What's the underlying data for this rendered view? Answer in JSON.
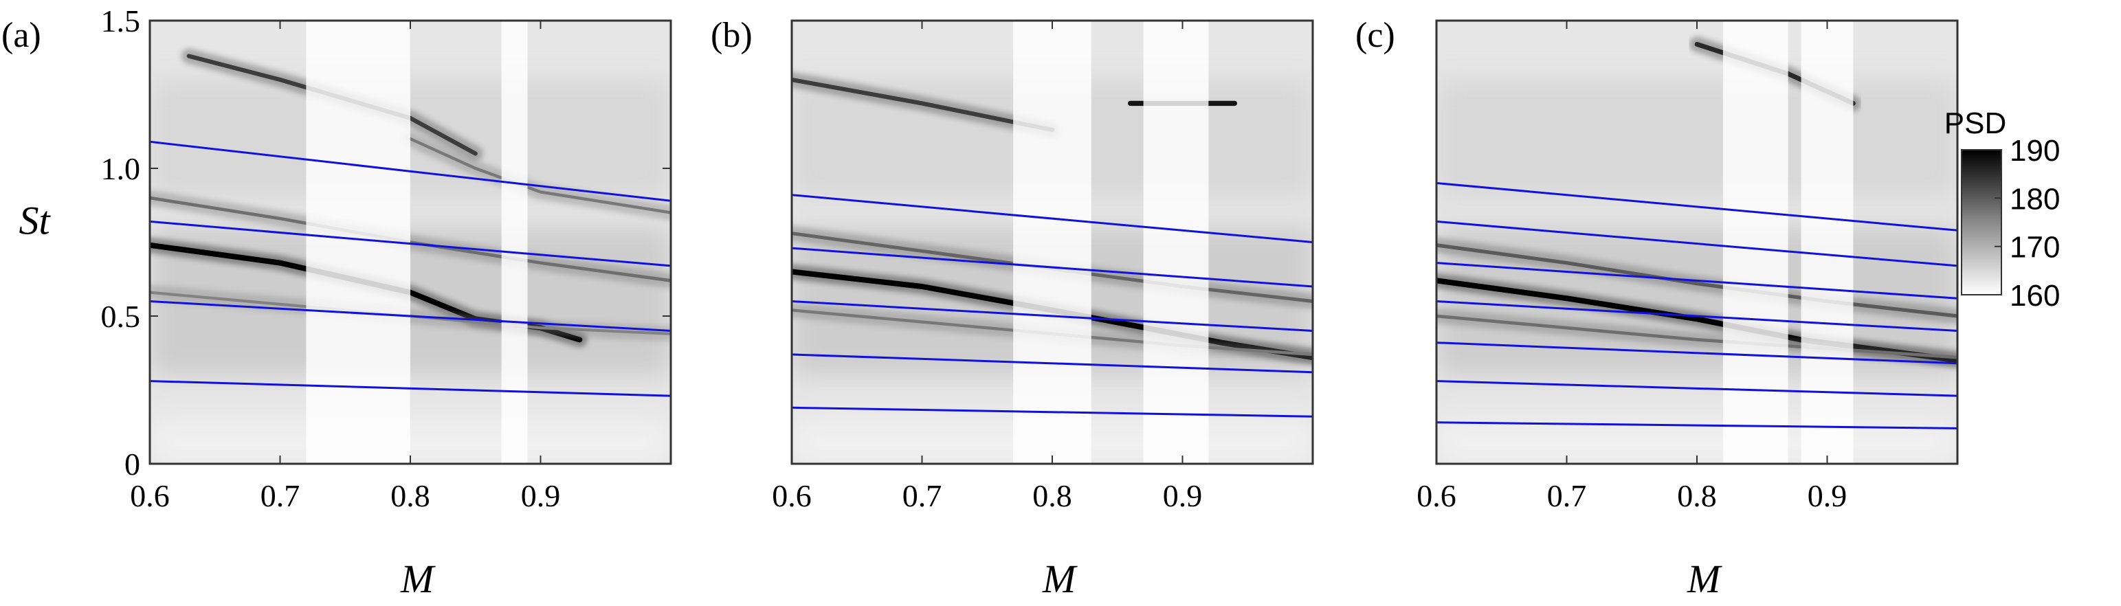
{
  "chart_data": [
    {
      "type": "heatmap",
      "panel_label": "(a)",
      "xlabel": "M",
      "ylabel": "St",
      "xlim": [
        0.6,
        1.0
      ],
      "ylim": [
        0,
        1.5
      ],
      "xticks": [
        "0.6",
        "0.7",
        "0.8",
        "0.9"
      ],
      "xtick_values": [
        0.6,
        0.7,
        0.8,
        0.9
      ],
      "yticks": [
        "0",
        "0.5",
        "1.0",
        "1.5"
      ],
      "ytick_values": [
        0,
        0.5,
        1.0,
        1.5
      ],
      "lines": [
        {
          "x": [
            0.6,
            1.0
          ],
          "y": [
            0.28,
            0.23
          ]
        },
        {
          "x": [
            0.6,
            1.0
          ],
          "y": [
            0.55,
            0.45
          ]
        },
        {
          "x": [
            0.6,
            1.0
          ],
          "y": [
            0.82,
            0.67
          ]
        },
        {
          "x": [
            0.6,
            1.0
          ],
          "y": [
            1.09,
            0.89
          ]
        }
      ],
      "ridges": [
        {
          "x": [
            0.6,
            0.7,
            0.8,
            0.85,
            0.9,
            0.93
          ],
          "y": [
            0.74,
            0.68,
            0.58,
            0.49,
            0.46,
            0.42
          ],
          "intensity": 1.0
        },
        {
          "x": [
            0.6,
            0.7,
            0.8,
            0.9,
            1.0
          ],
          "y": [
            0.9,
            0.83,
            0.75,
            0.68,
            0.62
          ],
          "intensity": 0.45
        },
        {
          "x": [
            0.6,
            0.7,
            0.8,
            0.9,
            1.0
          ],
          "y": [
            0.58,
            0.54,
            0.5,
            0.46,
            0.44
          ],
          "intensity": 0.35
        },
        {
          "x": [
            0.63,
            0.7,
            0.8,
            0.85
          ],
          "y": [
            1.38,
            1.3,
            1.17,
            1.05
          ],
          "intensity": 0.7
        },
        {
          "x": [
            0.8,
            0.85,
            0.9,
            1.0
          ],
          "y": [
            1.1,
            1.0,
            0.92,
            0.85
          ],
          "intensity": 0.4
        }
      ],
      "light_bands": [
        [
          0.72,
          0.8
        ],
        [
          0.87,
          0.89
        ]
      ]
    },
    {
      "type": "heatmap",
      "panel_label": "(b)",
      "xlabel": "M",
      "ylabel": "",
      "xlim": [
        0.6,
        1.0
      ],
      "ylim": [
        0,
        1.5
      ],
      "xticks": [
        "0.6",
        "0.7",
        "0.8",
        "0.9"
      ],
      "xtick_values": [
        0.6,
        0.7,
        0.8,
        0.9
      ],
      "yticks": [],
      "ytick_values": [],
      "lines": [
        {
          "x": [
            0.6,
            1.0
          ],
          "y": [
            0.19,
            0.16
          ]
        },
        {
          "x": [
            0.6,
            1.0
          ],
          "y": [
            0.37,
            0.31
          ]
        },
        {
          "x": [
            0.6,
            1.0
          ],
          "y": [
            0.55,
            0.45
          ]
        },
        {
          "x": [
            0.6,
            1.0
          ],
          "y": [
            0.73,
            0.6
          ]
        },
        {
          "x": [
            0.6,
            1.0
          ],
          "y": [
            0.91,
            0.75
          ]
        }
      ],
      "ridges": [
        {
          "x": [
            0.6,
            0.7,
            0.8,
            0.86,
            0.93,
            1.0
          ],
          "y": [
            0.65,
            0.6,
            0.52,
            0.47,
            0.41,
            0.36
          ],
          "intensity": 1.0
        },
        {
          "x": [
            0.6,
            0.7,
            0.8,
            0.9,
            1.0
          ],
          "y": [
            0.78,
            0.72,
            0.66,
            0.6,
            0.55
          ],
          "intensity": 0.5
        },
        {
          "x": [
            0.6,
            0.7,
            0.8,
            0.9,
            1.0
          ],
          "y": [
            0.52,
            0.48,
            0.44,
            0.4,
            0.37
          ],
          "intensity": 0.4
        },
        {
          "x": [
            0.6,
            0.7,
            0.8
          ],
          "y": [
            1.3,
            1.22,
            1.13
          ],
          "intensity": 0.7
        },
        {
          "x": [
            0.86,
            0.9,
            0.94
          ],
          "y": [
            1.22,
            1.22,
            1.22
          ],
          "intensity": 0.9
        }
      ],
      "light_bands": [
        [
          0.77,
          0.83
        ],
        [
          0.87,
          0.92
        ]
      ]
    },
    {
      "type": "heatmap",
      "panel_label": "(c)",
      "xlabel": "M",
      "ylabel": "",
      "xlim": [
        0.6,
        1.0
      ],
      "ylim": [
        0,
        1.5
      ],
      "xticks": [
        "0.6",
        "0.7",
        "0.8",
        "0.9"
      ],
      "xtick_values": [
        0.6,
        0.7,
        0.8,
        0.9
      ],
      "yticks": [],
      "ytick_values": [],
      "lines": [
        {
          "x": [
            0.6,
            1.0
          ],
          "y": [
            0.14,
            0.12
          ]
        },
        {
          "x": [
            0.6,
            1.0
          ],
          "y": [
            0.28,
            0.23
          ]
        },
        {
          "x": [
            0.6,
            1.0
          ],
          "y": [
            0.41,
            0.34
          ]
        },
        {
          "x": [
            0.6,
            1.0
          ],
          "y": [
            0.55,
            0.45
          ]
        },
        {
          "x": [
            0.6,
            1.0
          ],
          "y": [
            0.68,
            0.56
          ]
        },
        {
          "x": [
            0.6,
            1.0
          ],
          "y": [
            0.82,
            0.67
          ]
        },
        {
          "x": [
            0.6,
            1.0
          ],
          "y": [
            0.95,
            0.79
          ]
        }
      ],
      "ridges": [
        {
          "x": [
            0.6,
            0.7,
            0.8,
            0.88,
            0.95,
            1.0
          ],
          "y": [
            0.62,
            0.56,
            0.49,
            0.42,
            0.38,
            0.35
          ],
          "intensity": 1.0
        },
        {
          "x": [
            0.6,
            0.7,
            0.8,
            0.9,
            1.0
          ],
          "y": [
            0.74,
            0.68,
            0.61,
            0.55,
            0.5
          ],
          "intensity": 0.55
        },
        {
          "x": [
            0.6,
            0.7,
            0.8,
            0.9,
            1.0
          ],
          "y": [
            0.5,
            0.46,
            0.42,
            0.39,
            0.36
          ],
          "intensity": 0.45
        },
        {
          "x": [
            0.8,
            0.87,
            0.92
          ],
          "y": [
            1.42,
            1.32,
            1.22
          ],
          "intensity": 0.8
        }
      ],
      "light_bands": [
        [
          0.82,
          0.87
        ],
        [
          0.88,
          0.92
        ]
      ]
    }
  ],
  "colorbar": {
    "title": "PSD",
    "ticks": [
      "190",
      "180",
      "170",
      "160"
    ],
    "tick_values": [
      190,
      180,
      170,
      160
    ],
    "range": [
      160,
      190
    ]
  },
  "colors": {
    "line": "#1010e0",
    "frame": "#333333",
    "max": "#000000",
    "min": "#ffffff"
  }
}
